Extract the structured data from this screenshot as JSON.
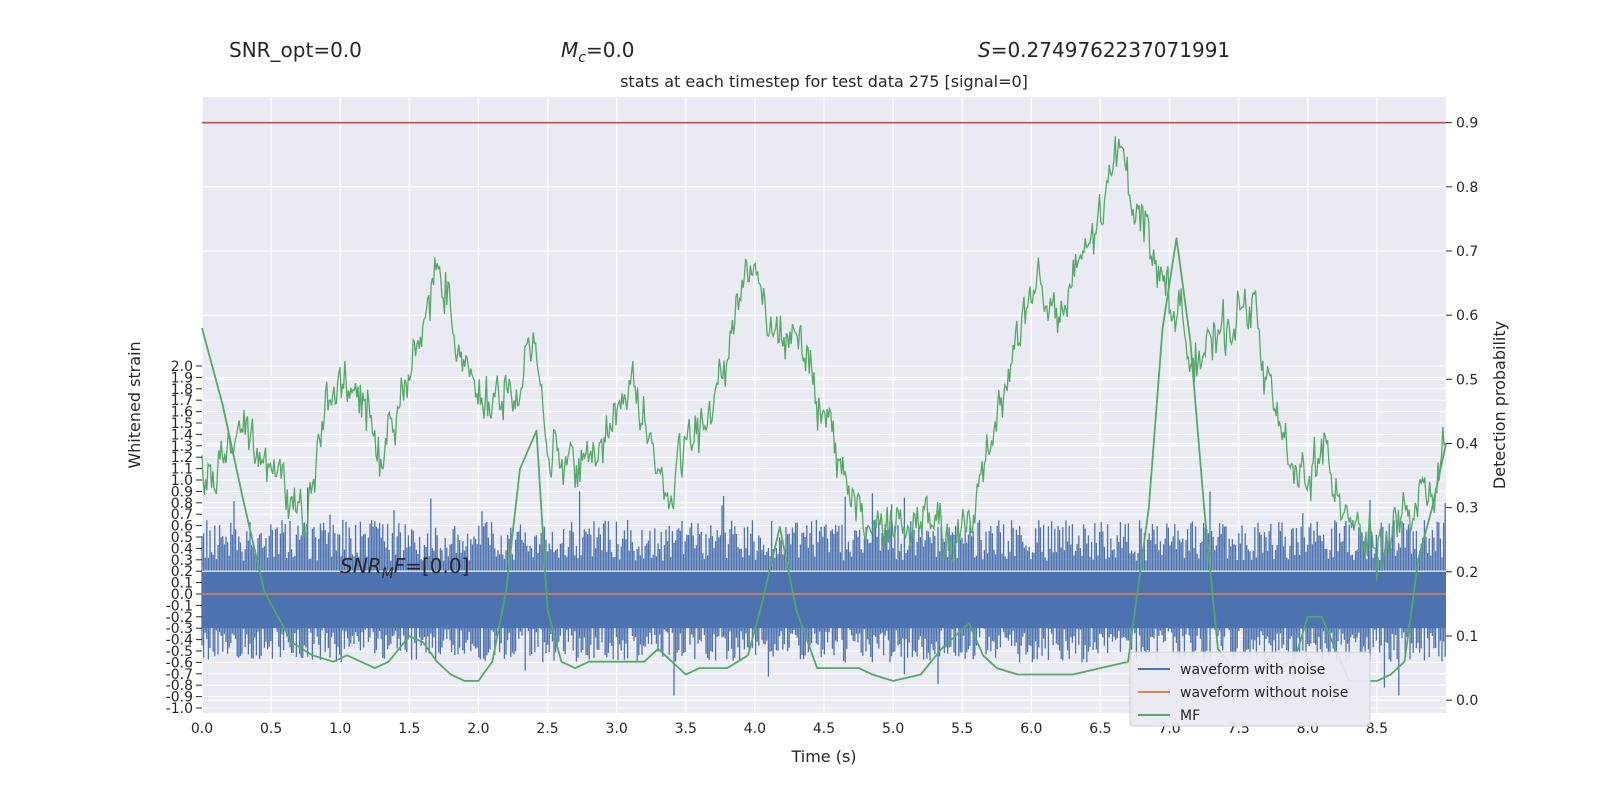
{
  "header": {
    "snr_opt": "SNR_opt=0.0",
    "mc_symbol": "M",
    "mc_sub": "c",
    "mc_value": "=0.0",
    "s_symbol": "S",
    "s_value": "=0.2749762237071991"
  },
  "chart_data": {
    "type": "line",
    "title": "stats at each timestep for test data 275 [signal=0]",
    "xlabel": "Time (s)",
    "ylabel_left": "Whitened strain",
    "ylabel_right": "Detection probability",
    "x_ticks": [
      "0.0",
      "0.5",
      "1.0",
      "1.5",
      "2.0",
      "2.5",
      "3.0",
      "3.5",
      "4.0",
      "4.5",
      "5.0",
      "5.5",
      "6.0",
      "6.5",
      "7.0",
      "7.5",
      "8.0",
      "8.5"
    ],
    "xlim": [
      0,
      9.0
    ],
    "left_ticks": [
      "-1.0",
      "-0.9",
      "-0.8",
      "-0.7",
      "-0.6",
      "-0.5",
      "-0.4",
      "-0.3",
      "-0.2",
      "-0.1",
      "0.0",
      "0.1",
      "0.2",
      "0.3",
      "0.4",
      "0.5",
      "0.6",
      "0.7",
      "0.8",
      "0.9",
      "1.0",
      "1.1",
      "1.2",
      "1.3",
      "1.4",
      "1.5",
      "1.6",
      "1.7",
      "1.8",
      "1.9",
      "2.0"
    ],
    "right_ticks": [
      "0.0",
      "0.1",
      "0.2",
      "0.3",
      "0.4",
      "0.5",
      "0.6",
      "0.7",
      "0.8",
      "0.9"
    ],
    "ylim_right": [
      -0.02,
      0.94
    ],
    "annotation": {
      "prefix": "SNR",
      "sub": "M",
      "mid": "F",
      "value": "=[0.0]"
    },
    "threshold": {
      "value": 0.9,
      "color": "#c44e52"
    },
    "grid": true,
    "legend_position": "lower-right",
    "legend": [
      {
        "label": "waveform with noise",
        "color": "#4c72b0"
      },
      {
        "label": "waveform without noise",
        "color": "#dd8452"
      },
      {
        "label": "MF",
        "color": "#55a868"
      }
    ],
    "series": [
      {
        "name": "waveform with noise",
        "axis": "left",
        "color": "#4c72b0",
        "band": [
          -0.6,
          0.65
        ],
        "value": 0.0
      },
      {
        "name": "waveform without noise",
        "axis": "left",
        "color": "#dd8452",
        "value": 0.0
      },
      {
        "name": "",
        "axis": "right",
        "color": "#55a868",
        "style": "noisy",
        "x": [
          0.0,
          0.2,
          0.3,
          0.45,
          0.6,
          0.75,
          0.9,
          1.0,
          1.2,
          1.3,
          1.45,
          1.6,
          1.72,
          1.85,
          2.0,
          2.1,
          2.2,
          2.3,
          2.4,
          2.5,
          2.6,
          2.8,
          3.0,
          3.1,
          3.25,
          3.4,
          3.5,
          3.65,
          3.8,
          3.95,
          4.0,
          4.15,
          4.3,
          4.45,
          4.6,
          4.8,
          5.0,
          5.1,
          5.3,
          5.45,
          5.6,
          5.75,
          5.9,
          6.05,
          6.2,
          6.35,
          6.5,
          6.65,
          6.75,
          6.85,
          7.0,
          7.15,
          7.3,
          7.5,
          7.6,
          7.75,
          7.9,
          8.1,
          8.3,
          8.5,
          8.7,
          8.9,
          9.0
        ],
        "y": [
          0.34,
          0.38,
          0.46,
          0.38,
          0.33,
          0.29,
          0.44,
          0.5,
          0.45,
          0.38,
          0.49,
          0.57,
          0.7,
          0.55,
          0.5,
          0.46,
          0.48,
          0.47,
          0.58,
          0.4,
          0.38,
          0.37,
          0.44,
          0.51,
          0.4,
          0.3,
          0.4,
          0.43,
          0.55,
          0.69,
          0.66,
          0.57,
          0.59,
          0.46,
          0.38,
          0.27,
          0.28,
          0.26,
          0.29,
          0.22,
          0.31,
          0.45,
          0.57,
          0.66,
          0.58,
          0.68,
          0.75,
          0.87,
          0.78,
          0.72,
          0.63,
          0.55,
          0.54,
          0.61,
          0.62,
          0.46,
          0.34,
          0.38,
          0.3,
          0.23,
          0.28,
          0.32,
          0.39
        ]
      },
      {
        "name": "MF",
        "axis": "right",
        "color": "#55a868",
        "style": "smooth",
        "x": [
          0.0,
          0.05,
          0.15,
          0.3,
          0.45,
          0.55,
          0.65,
          0.8,
          0.95,
          1.05,
          1.15,
          1.25,
          1.35,
          1.5,
          1.6,
          1.7,
          1.8,
          1.9,
          2.0,
          2.1,
          2.2,
          2.3,
          2.42,
          2.5,
          2.6,
          2.7,
          2.8,
          3.0,
          3.2,
          3.3,
          3.4,
          3.5,
          3.6,
          3.8,
          3.95,
          4.05,
          4.18,
          4.3,
          4.45,
          4.6,
          4.75,
          4.85,
          5.0,
          5.2,
          5.35,
          5.45,
          5.55,
          5.65,
          5.75,
          5.9,
          6.1,
          6.3,
          6.5,
          6.7,
          6.85,
          6.95,
          7.05,
          7.15,
          7.25,
          7.35,
          7.5,
          7.7,
          7.9,
          8.0,
          8.1,
          8.2,
          8.3,
          8.4,
          8.5,
          8.6,
          8.7,
          8.8,
          8.9,
          9.0
        ],
        "y": [
          0.58,
          0.54,
          0.46,
          0.31,
          0.17,
          0.13,
          0.09,
          0.07,
          0.06,
          0.07,
          0.06,
          0.05,
          0.06,
          0.1,
          0.09,
          0.06,
          0.04,
          0.03,
          0.03,
          0.06,
          0.17,
          0.36,
          0.42,
          0.14,
          0.06,
          0.05,
          0.06,
          0.06,
          0.06,
          0.08,
          0.06,
          0.04,
          0.05,
          0.05,
          0.07,
          0.15,
          0.27,
          0.14,
          0.05,
          0.05,
          0.05,
          0.04,
          0.03,
          0.04,
          0.08,
          0.1,
          0.12,
          0.07,
          0.05,
          0.04,
          0.04,
          0.04,
          0.05,
          0.06,
          0.3,
          0.58,
          0.72,
          0.56,
          0.3,
          0.08,
          0.04,
          0.05,
          0.06,
          0.13,
          0.13,
          0.08,
          0.03,
          0.03,
          0.03,
          0.04,
          0.06,
          0.22,
          0.3,
          0.4
        ]
      }
    ]
  }
}
